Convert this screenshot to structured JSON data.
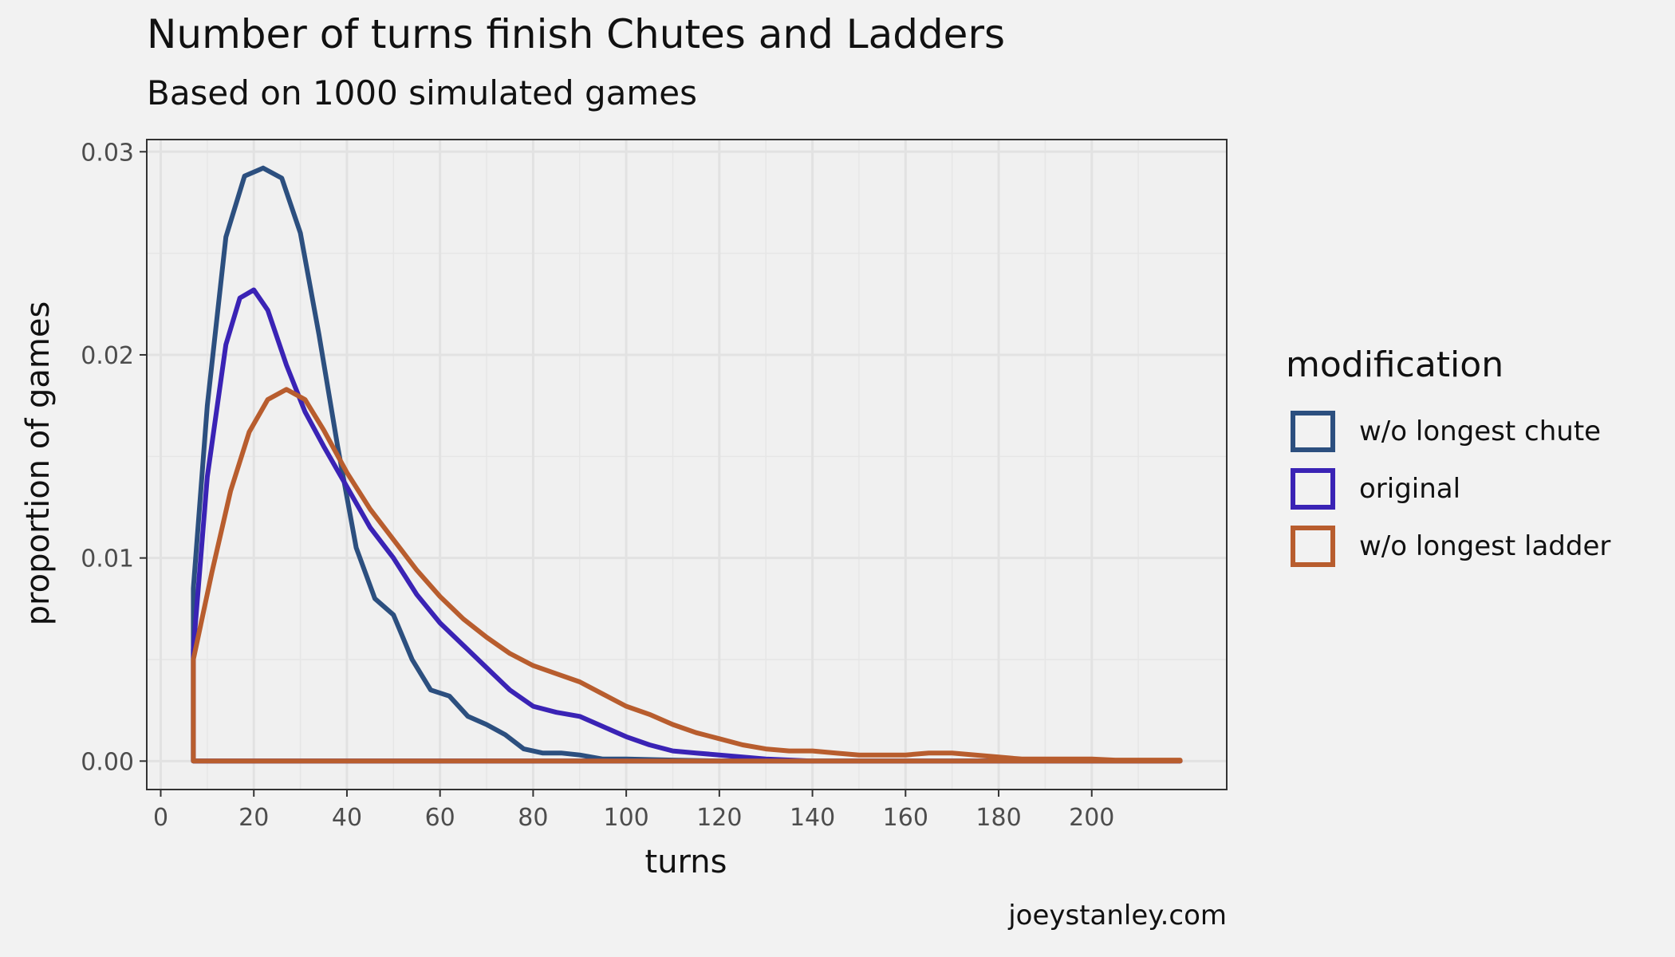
{
  "title": "Number of turns finish Chutes and Ladders",
  "subtitle": "Based on 1000 simulated games",
  "caption": "joeystanley.com",
  "chart_data": {
    "type": "line",
    "xlabel": "turns",
    "ylabel": "proportion of games",
    "xlim": [
      -3,
      229
    ],
    "ylim": [
      -0.0014,
      0.0306
    ],
    "xticks": [
      0,
      20,
      40,
      60,
      80,
      100,
      120,
      140,
      160,
      180,
      200
    ],
    "xtick_labels": [
      "0",
      "20",
      "40",
      "60",
      "80",
      "100",
      "120",
      "140",
      "160",
      "180",
      "200"
    ],
    "yticks": [
      0,
      0.01,
      0.02,
      0.03
    ],
    "ytick_labels": [
      "0.00",
      "0.01",
      "0.02",
      "0.03"
    ],
    "grid": true,
    "legend": {
      "title": "modification",
      "position": "right"
    },
    "series": [
      {
        "name": "w/o longest chute",
        "color": "#2c4f7f",
        "x": [
          7,
          7,
          10,
          14,
          18,
          22,
          26,
          30,
          34,
          38,
          42,
          46,
          50,
          54,
          58,
          62,
          66,
          70,
          74,
          78,
          82,
          86,
          90,
          95,
          100,
          110,
          120,
          130,
          140,
          219
        ],
        "y": [
          0,
          0.0085,
          0.0175,
          0.0258,
          0.0288,
          0.0292,
          0.0287,
          0.026,
          0.021,
          0.0155,
          0.0105,
          0.008,
          0.0072,
          0.005,
          0.0035,
          0.0032,
          0.0022,
          0.0018,
          0.0013,
          0.0006,
          0.0004,
          0.0004,
          0.0003,
          0.0001,
          0.0001,
          5e-05,
          0,
          0,
          0,
          0
        ]
      },
      {
        "name": "original",
        "color": "#3a23b5",
        "x": [
          7,
          7,
          10,
          14,
          17,
          20,
          23,
          27,
          31,
          35,
          40,
          45,
          50,
          55,
          60,
          65,
          70,
          75,
          80,
          85,
          90,
          95,
          100,
          105,
          110,
          115,
          120,
          130,
          140,
          219
        ],
        "y": [
          0,
          0.0055,
          0.014,
          0.0205,
          0.0228,
          0.0232,
          0.0222,
          0.0195,
          0.0172,
          0.0155,
          0.0135,
          0.0115,
          0.01,
          0.0082,
          0.0068,
          0.0057,
          0.0046,
          0.0035,
          0.0027,
          0.0024,
          0.0022,
          0.0017,
          0.0012,
          0.0008,
          0.0005,
          0.0004,
          0.0003,
          0.0001,
          0,
          0
        ]
      },
      {
        "name": "w/o longest ladder",
        "color": "#b85d2e",
        "x": [
          7,
          7,
          11,
          15,
          19,
          23,
          27,
          31,
          35,
          40,
          45,
          50,
          55,
          60,
          65,
          70,
          75,
          80,
          85,
          90,
          95,
          100,
          105,
          110,
          115,
          120,
          125,
          130,
          135,
          140,
          145,
          150,
          155,
          160,
          165,
          170,
          175,
          180,
          185,
          190,
          195,
          200,
          205,
          210,
          219,
          219
        ],
        "y": [
          0,
          0.005,
          0.0093,
          0.0133,
          0.0162,
          0.0178,
          0.0183,
          0.0178,
          0.0163,
          0.0142,
          0.0124,
          0.0109,
          0.0094,
          0.0081,
          0.007,
          0.0061,
          0.0053,
          0.0047,
          0.0043,
          0.0039,
          0.0033,
          0.0027,
          0.0023,
          0.0018,
          0.0014,
          0.0011,
          0.0008,
          0.0006,
          0.0005,
          0.0005,
          0.0004,
          0.0003,
          0.0003,
          0.0003,
          0.0004,
          0.0004,
          0.0003,
          0.0002,
          0.0001,
          0.0001,
          0.0001,
          0.0001,
          5e-05,
          5e-05,
          5e-05,
          0
        ]
      }
    ]
  }
}
